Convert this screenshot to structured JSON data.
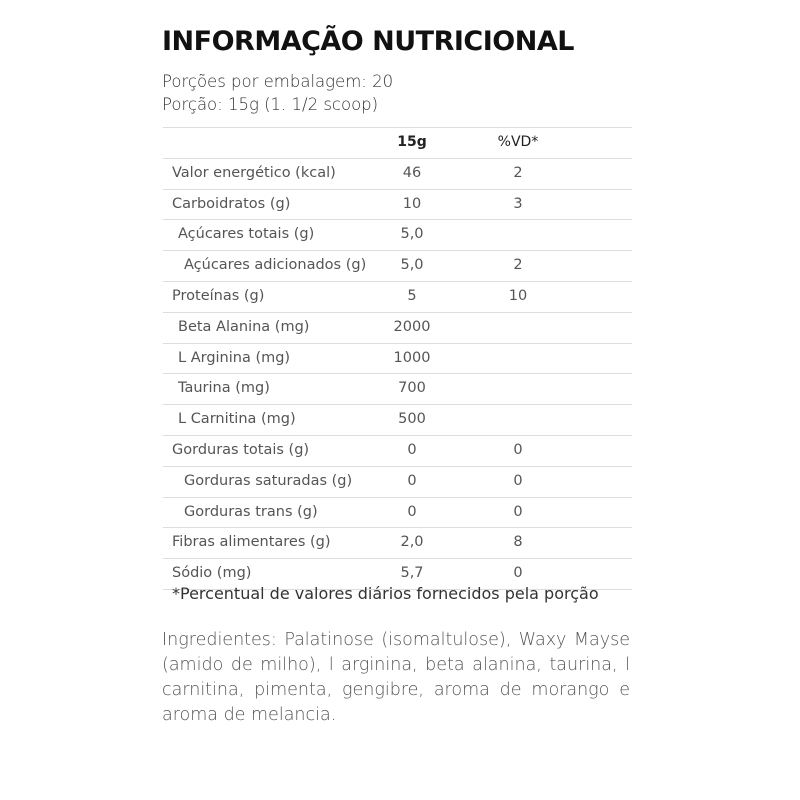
{
  "title": "INFORMAÇÃO NUTRICIONAL",
  "servings_per_package": "Porções por embalagem: 20",
  "serving_size": "Porção: 15g (1. 1/2 scoop)",
  "table": {
    "headers": [
      "",
      "15g",
      "%VD*"
    ],
    "rows": [
      {
        "label": "Valor energético (kcal)",
        "value": "46",
        "vd": "2",
        "indent": 0
      },
      {
        "label": "Carboidratos (g)",
        "value": "10",
        "vd": "3",
        "indent": 0
      },
      {
        "label": "Açúcares totais (g)",
        "value": "5,0",
        "vd": "",
        "indent": 1
      },
      {
        "label": "Açúcares adicionados (g)",
        "value": "5,0",
        "vd": "2",
        "indent": 2
      },
      {
        "label": "Proteínas (g)",
        "value": "5",
        "vd": "10",
        "indent": 0
      },
      {
        "label": "Beta Alanina (mg)",
        "value": "2000",
        "vd": "",
        "indent": 1
      },
      {
        "label": "L Arginina (mg)",
        "value": "1000",
        "vd": "",
        "indent": 1
      },
      {
        "label": "Taurina (mg)",
        "value": "700",
        "vd": "",
        "indent": 1
      },
      {
        "label": "L Carnitina (mg)",
        "value": "500",
        "vd": "",
        "indent": 1
      },
      {
        "label": "Gorduras totais (g)",
        "value": "0",
        "vd": "0",
        "indent": 0
      },
      {
        "label": "Gorduras saturadas (g)",
        "value": "0",
        "vd": "0",
        "indent": 2
      },
      {
        "label": "Gorduras trans (g)",
        "value": "0",
        "vd": "0",
        "indent": 2
      },
      {
        "label": "Fibras alimentares (g)",
        "value": "2,0",
        "vd": "8",
        "indent": 0
      },
      {
        "label": "Sódio (mg)",
        "value": "5,7",
        "vd": "0",
        "indent": 0
      }
    ]
  },
  "footnote": "*Percentual de valores diários fornecidos pela porção",
  "ingredients": "Ingredientes: Palatinose (isomaltulose), Waxy Mayse (amido de milho), l arginina, beta alanina, taurina, l carnitina, pimenta, gengibre, aroma de morango e aroma de melancia."
}
